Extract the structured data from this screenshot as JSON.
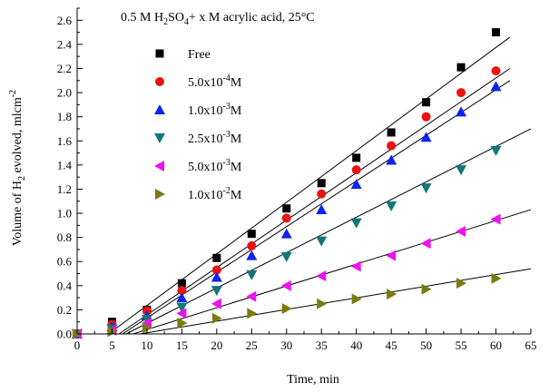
{
  "chart_data": {
    "type": "scatter",
    "title": "0.5 M H2SO4+ x M acrylic acid, 25°C",
    "title_parts": {
      "p1": "0.5 M H",
      "s1": "2",
      "p2": "SO",
      "s2": "4",
      "p3": "+ x M acrylic acid, 25°C"
    },
    "xlabel": "Time, min",
    "ylabel": "Volume of H2 evolved, mlcm-2",
    "ylabel_parts": {
      "p1": "Volume of H",
      "s1": "2",
      "p2": " evolved, mlcm",
      "sup": "-2"
    },
    "xlim": [
      0,
      65
    ],
    "ylim": [
      0,
      2.7
    ],
    "x_ticks": [
      0,
      5,
      10,
      15,
      20,
      25,
      30,
      35,
      40,
      45,
      50,
      55,
      60,
      65
    ],
    "y_ticks": [
      0.0,
      0.2,
      0.4,
      0.6,
      0.8,
      1.0,
      1.2,
      1.4,
      1.6,
      1.8,
      2.0,
      2.2,
      2.4,
      2.6
    ],
    "x_tick_labels": [
      "0",
      "5",
      "10",
      "15",
      "20",
      "25",
      "30",
      "35",
      "40",
      "45",
      "50",
      "55",
      "60",
      "65"
    ],
    "y_tick_labels": [
      "0.0",
      "0.2",
      "0.4",
      "0.6",
      "0.8",
      "1.0",
      "1.2",
      "1.4",
      "1.6",
      "1.8",
      "2.0",
      "2.2",
      "2.4",
      "2.6"
    ],
    "grid": false,
    "legend_position": "top-left",
    "x": [
      0,
      5,
      10,
      15,
      20,
      25,
      30,
      35,
      40,
      45,
      50,
      55,
      60
    ],
    "series": [
      {
        "name": "Free",
        "name_parts": {
          "base": "Free",
          "exp": "",
          "unit": ""
        },
        "marker": "square",
        "color": "#000000",
        "values": [
          0.0,
          0.1,
          0.2,
          0.42,
          0.63,
          0.83,
          1.04,
          1.25,
          1.46,
          1.67,
          1.92,
          2.21,
          2.5
        ],
        "fit": [
          [
            4.5,
            0.0
          ],
          [
            62,
            2.46
          ]
        ]
      },
      {
        "name": "5.0x10-4M",
        "name_parts": {
          "base": "5.0x10",
          "exp": "-4",
          "unit": "M"
        },
        "marker": "circle",
        "color": "#ee1111",
        "values": [
          0.0,
          0.08,
          0.19,
          0.36,
          0.53,
          0.73,
          0.96,
          1.16,
          1.36,
          1.56,
          1.8,
          2.0,
          2.18
        ],
        "fit": [
          [
            6.0,
            0.0
          ],
          [
            62,
            2.2
          ]
        ]
      },
      {
        "name": "1.0x10-3M",
        "name_parts": {
          "base": "1.0x10",
          "exp": "-3",
          "unit": "M"
        },
        "marker": "triangle-up",
        "color": "#1122ee",
        "values": [
          0.0,
          0.06,
          0.15,
          0.3,
          0.47,
          0.65,
          0.83,
          1.03,
          1.24,
          1.44,
          1.63,
          1.84,
          2.05
        ],
        "fit": [
          [
            6.5,
            0.0
          ],
          [
            62,
            2.1
          ]
        ]
      },
      {
        "name": "2.5x10-3M",
        "name_parts": {
          "base": "2.5x10",
          "exp": "-3",
          "unit": "M"
        },
        "marker": "triangle-down",
        "color": "#117777",
        "values": [
          0.0,
          0.04,
          0.12,
          0.22,
          0.36,
          0.49,
          0.64,
          0.77,
          0.92,
          1.06,
          1.21,
          1.36,
          1.52
        ],
        "fit": [
          [
            7.0,
            0.0
          ],
          [
            65,
            1.7
          ]
        ]
      },
      {
        "name": "5.0x10-3M",
        "name_parts": {
          "base": "5.0x10",
          "exp": "-3",
          "unit": "M"
        },
        "marker": "triangle-left",
        "color": "#ee11ee",
        "values": [
          0.0,
          0.03,
          0.09,
          0.17,
          0.25,
          0.31,
          0.4,
          0.48,
          0.56,
          0.65,
          0.75,
          0.85,
          0.95
        ],
        "fit": [
          [
            8.0,
            0.0
          ],
          [
            65,
            1.03
          ]
        ]
      },
      {
        "name": "1.0x10-2M",
        "name_parts": {
          "base": "1.0x10",
          "exp": "-2",
          "unit": "M"
        },
        "marker": "triangle-right",
        "color": "#7a7a10",
        "values": [
          0.0,
          0.02,
          0.05,
          0.09,
          0.13,
          0.17,
          0.21,
          0.25,
          0.29,
          0.33,
          0.37,
          0.42,
          0.46
        ],
        "fit": [
          [
            9.0,
            0.0
          ],
          [
            65,
            0.54
          ]
        ]
      }
    ]
  }
}
